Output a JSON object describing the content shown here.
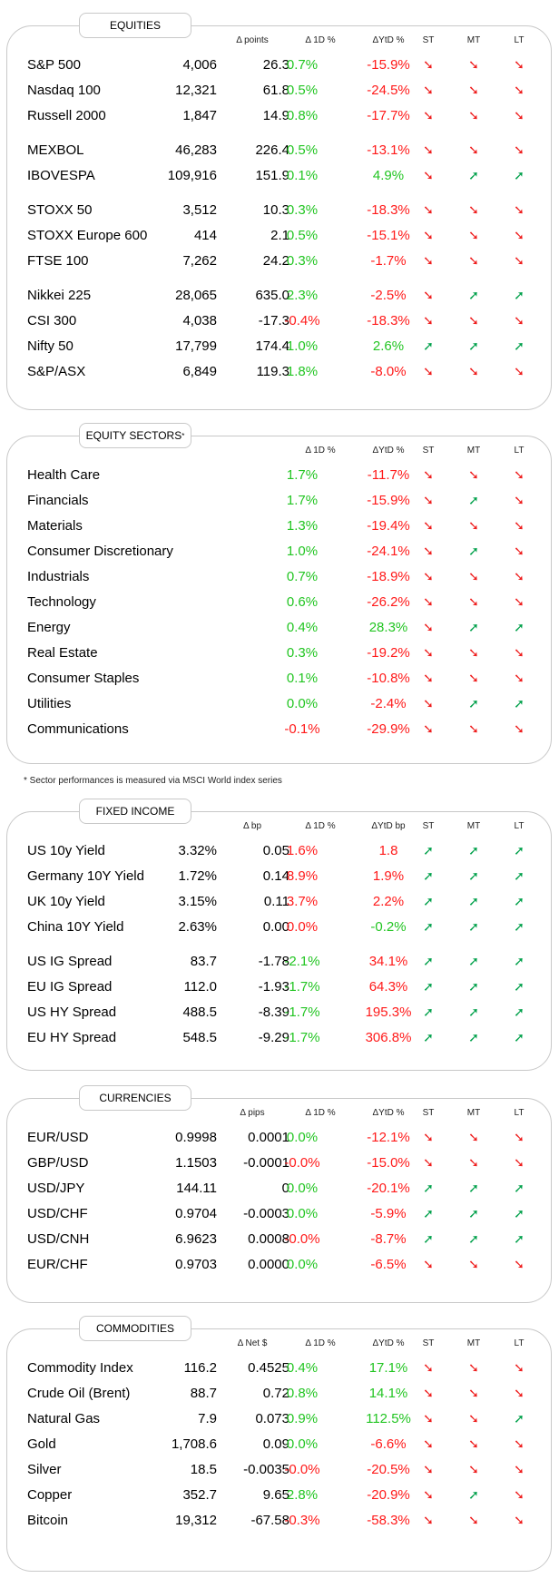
{
  "headers": {
    "st": "ST",
    "mt": "MT",
    "lt": "LT",
    "d1": "Δ 1D %",
    "ytd": "ΔYtD %",
    "ytd_bp": "ΔYtD bp"
  },
  "sections": [
    {
      "id": "equities",
      "title": "EQUITIES",
      "star": "",
      "unit": "Δ points",
      "top": 28,
      "height": 424,
      "rows": [
        {
          "name": "S&P 500",
          "v1": "4,006",
          "v2": "26.3",
          "d1": "0.7%",
          "d1s": "pos",
          "ytd": "-15.9%",
          "ytds": "neg",
          "st": "down",
          "mt": "down",
          "lt": "down"
        },
        {
          "name": "Nasdaq 100",
          "v1": "12,321",
          "v2": "61.8",
          "d1": "0.5%",
          "d1s": "pos",
          "ytd": "-24.5%",
          "ytds": "neg",
          "st": "down",
          "mt": "down",
          "lt": "down"
        },
        {
          "name": "Russell 2000",
          "v1": "1,847",
          "v2": "14.9",
          "d1": "0.8%",
          "d1s": "pos",
          "ytd": "-17.7%",
          "ytds": "neg",
          "st": "down",
          "mt": "down",
          "lt": "down",
          "gap": true
        },
        {
          "name": "MEXBOL",
          "v1": "46,283",
          "v2": "226.4",
          "d1": "0.5%",
          "d1s": "pos",
          "ytd": "-13.1%",
          "ytds": "neg",
          "st": "down",
          "mt": "down",
          "lt": "down"
        },
        {
          "name": "IBOVESPA",
          "v1": "109,916",
          "v2": "151.9",
          "d1": "0.1%",
          "d1s": "pos",
          "ytd": "4.9%",
          "ytds": "pos",
          "st": "down",
          "mt": "up",
          "lt": "up",
          "gap": true
        },
        {
          "name": "STOXX 50",
          "v1": "3,512",
          "v2": "10.3",
          "d1": "0.3%",
          "d1s": "pos",
          "ytd": "-18.3%",
          "ytds": "neg",
          "st": "down",
          "mt": "down",
          "lt": "down"
        },
        {
          "name": "STOXX Europe 600",
          "v1": "414",
          "v2": "2.1",
          "d1": "0.5%",
          "d1s": "pos",
          "ytd": "-15.1%",
          "ytds": "neg",
          "st": "down",
          "mt": "down",
          "lt": "down"
        },
        {
          "name": "FTSE 100",
          "v1": "7,262",
          "v2": "24.2",
          "d1": "0.3%",
          "d1s": "pos",
          "ytd": "-1.7%",
          "ytds": "neg",
          "st": "down",
          "mt": "down",
          "lt": "down",
          "gap": true
        },
        {
          "name": "Nikkei 225",
          "v1": "28,065",
          "v2": "635.0",
          "d1": "2.3%",
          "d1s": "pos",
          "ytd": "-2.5%",
          "ytds": "neg",
          "st": "down",
          "mt": "up",
          "lt": "up"
        },
        {
          "name": "CSI 300",
          "v1": "4,038",
          "v2": "-17.3",
          "d1": "-0.4%",
          "d1s": "neg",
          "ytd": "-18.3%",
          "ytds": "neg",
          "st": "down",
          "mt": "down",
          "lt": "down"
        },
        {
          "name": "Nifty  50",
          "v1": "17,799",
          "v2": "174.4",
          "d1": "1.0%",
          "d1s": "pos",
          "ytd": "2.6%",
          "ytds": "pos",
          "st": "up",
          "mt": "up",
          "lt": "up"
        },
        {
          "name": "S&P/ASX",
          "v1": "6,849",
          "v2": "119.3",
          "d1": "1.8%",
          "d1s": "pos",
          "ytd": "-8.0%",
          "ytds": "neg",
          "st": "down",
          "mt": "down",
          "lt": "down"
        }
      ]
    },
    {
      "id": "sectors",
      "title": "EQUITY SECTORS",
      "star": "*",
      "unit": "",
      "top": 480,
      "height": 362,
      "rows": [
        {
          "name": "Health Care",
          "v1": "",
          "v2": "",
          "d1": "1.7%",
          "d1s": "pos",
          "ytd": "-11.7%",
          "ytds": "neg",
          "st": "down",
          "mt": "down",
          "lt": "down"
        },
        {
          "name": "Financials",
          "v1": "",
          "v2": "",
          "d1": "1.7%",
          "d1s": "pos",
          "ytd": "-15.9%",
          "ytds": "neg",
          "st": "down",
          "mt": "up",
          "lt": "down"
        },
        {
          "name": "Materials",
          "v1": "",
          "v2": "",
          "d1": "1.3%",
          "d1s": "pos",
          "ytd": "-19.4%",
          "ytds": "neg",
          "st": "down",
          "mt": "down",
          "lt": "down"
        },
        {
          "name": "Consumer Discretionary",
          "v1": "",
          "v2": "",
          "d1": "1.0%",
          "d1s": "pos",
          "ytd": "-24.1%",
          "ytds": "neg",
          "st": "down",
          "mt": "up",
          "lt": "down"
        },
        {
          "name": "Industrials",
          "v1": "",
          "v2": "",
          "d1": "0.7%",
          "d1s": "pos",
          "ytd": "-18.9%",
          "ytds": "neg",
          "st": "down",
          "mt": "down",
          "lt": "down"
        },
        {
          "name": "Technology",
          "v1": "",
          "v2": "",
          "d1": "0.6%",
          "d1s": "pos",
          "ytd": "-26.2%",
          "ytds": "neg",
          "st": "down",
          "mt": "down",
          "lt": "down"
        },
        {
          "name": "Energy",
          "v1": "",
          "v2": "",
          "d1": "0.4%",
          "d1s": "pos",
          "ytd": "28.3%",
          "ytds": "pos",
          "st": "down",
          "mt": "up",
          "lt": "up"
        },
        {
          "name": "Real Estate",
          "v1": "",
          "v2": "",
          "d1": "0.3%",
          "d1s": "pos",
          "ytd": "-19.2%",
          "ytds": "neg",
          "st": "down",
          "mt": "down",
          "lt": "down"
        },
        {
          "name": "Consumer Staples",
          "v1": "",
          "v2": "",
          "d1": "0.1%",
          "d1s": "pos",
          "ytd": "-10.8%",
          "ytds": "neg",
          "st": "down",
          "mt": "down",
          "lt": "down"
        },
        {
          "name": "Utilities",
          "v1": "",
          "v2": "",
          "d1": "0.0%",
          "d1s": "pos",
          "ytd": "-2.4%",
          "ytds": "neg",
          "st": "down",
          "mt": "up",
          "lt": "up"
        },
        {
          "name": "Communications",
          "v1": "",
          "v2": "",
          "d1": "-0.1%",
          "d1s": "neg",
          "ytd": "-29.9%",
          "ytds": "neg",
          "st": "down",
          "mt": "down",
          "lt": "down"
        }
      ]
    },
    {
      "id": "fixed",
      "title": "FIXED INCOME",
      "star": "",
      "unit": "Δ bp",
      "top": 894,
      "height": 286,
      "ytdlabel": "ΔYtD bp",
      "rows": [
        {
          "name": "US 10y Yield",
          "v1": "3.32%",
          "v2": "0.05",
          "d1": "1.6%",
          "d1s": "neg",
          "ytd": "1.8",
          "ytds": "neg",
          "st": "up",
          "mt": "up",
          "lt": "up"
        },
        {
          "name": "Germany 10Y Yield",
          "v1": "1.72%",
          "v2": "0.14",
          "d1": "8.9%",
          "d1s": "neg",
          "ytd": "1.9%",
          "ytds": "neg",
          "st": "up",
          "mt": "up",
          "lt": "up"
        },
        {
          "name": "UK 10y Yield",
          "v1": "3.15%",
          "v2": "0.11",
          "d1": "3.7%",
          "d1s": "neg",
          "ytd": "2.2%",
          "ytds": "neg",
          "st": "up",
          "mt": "up",
          "lt": "up"
        },
        {
          "name": "China 10Y Yield",
          "v1": "2.63%",
          "v2": "0.00",
          "d1": "0.0%",
          "d1s": "neg",
          "ytd": "-0.2%",
          "ytds": "pos",
          "st": "up",
          "mt": "up",
          "lt": "up",
          "gap": true
        },
        {
          "name": "US IG Spread",
          "v1": "83.7",
          "v2": "-1.78",
          "d1": "-2.1%",
          "d1s": "pos",
          "ytd": "34.1%",
          "ytds": "neg",
          "st": "up",
          "mt": "up",
          "lt": "up"
        },
        {
          "name": "EU IG Spread",
          "v1": "112.0",
          "v2": "-1.93",
          "d1": "-1.7%",
          "d1s": "pos",
          "ytd": "64.3%",
          "ytds": "neg",
          "st": "up",
          "mt": "up",
          "lt": "up"
        },
        {
          "name": "US HY Spread",
          "v1": "488.5",
          "v2": "-8.39",
          "d1": "-1.7%",
          "d1s": "pos",
          "ytd": "195.3%",
          "ytds": "neg",
          "st": "up",
          "mt": "up",
          "lt": "up"
        },
        {
          "name": "EU HY Spread",
          "v1": "548.5",
          "v2": "-9.29",
          "d1": "-1.7%",
          "d1s": "pos",
          "ytd": "306.8%",
          "ytds": "neg",
          "st": "up",
          "mt": "up",
          "lt": "up"
        }
      ]
    },
    {
      "id": "currencies",
      "title": "CURRENCIES",
      "star": "",
      "unit": "Δ pips",
      "top": 1210,
      "height": 226,
      "rows": [
        {
          "name": "EUR/USD",
          "v1": "0.9998",
          "v2": "0.0001",
          "d1": "0.0%",
          "d1s": "pos",
          "ytd": "-12.1%",
          "ytds": "neg",
          "st": "down",
          "mt": "down",
          "lt": "down"
        },
        {
          "name": "GBP/USD",
          "v1": "1.1503",
          "v2": "-0.0001",
          "d1": "-0.0%",
          "d1s": "neg",
          "ytd": "-15.0%",
          "ytds": "neg",
          "st": "down",
          "mt": "down",
          "lt": "down"
        },
        {
          "name": "USD/JPY",
          "v1": "144.11",
          "v2": "0",
          "d1": "0.0%",
          "d1s": "pos",
          "ytd": "-20.1%",
          "ytds": "neg",
          "st": "up",
          "mt": "up",
          "lt": "up"
        },
        {
          "name": "USD/CHF",
          "v1": "0.9704",
          "v2": "-0.0003",
          "d1": "0.0%",
          "d1s": "pos",
          "ytd": "-5.9%",
          "ytds": "neg",
          "st": "up",
          "mt": "up",
          "lt": "up"
        },
        {
          "name": "USD/CNH",
          "v1": "6.9623",
          "v2": "0.0008",
          "d1": "-0.0%",
          "d1s": "neg",
          "ytd": "-8.7%",
          "ytds": "neg",
          "st": "up",
          "mt": "up",
          "lt": "up"
        },
        {
          "name": "EUR/CHF",
          "v1": "0.9703",
          "v2": "0.0000",
          "d1": "0.0%",
          "d1s": "pos",
          "ytd": "-6.5%",
          "ytds": "neg",
          "st": "down",
          "mt": "down",
          "lt": "down"
        }
      ]
    },
    {
      "id": "commodities",
      "title": "COMMODITIES",
      "star": "",
      "unit": "Δ Net $",
      "top": 1464,
      "height": 268,
      "rows": [
        {
          "name": "Commodity Index",
          "v1": "116.2",
          "v2": "0.4525",
          "d1": "0.4%",
          "d1s": "pos",
          "ytd": "17.1%",
          "ytds": "pos",
          "st": "down",
          "mt": "down",
          "lt": "down"
        },
        {
          "name": "Crude Oil (Brent)",
          "v1": "88.7",
          "v2": "0.72",
          "d1": "0.8%",
          "d1s": "pos",
          "ytd": "14.1%",
          "ytds": "pos",
          "st": "down",
          "mt": "down",
          "lt": "down"
        },
        {
          "name": "Natural Gas",
          "v1": "7.9",
          "v2": "0.073",
          "d1": "0.9%",
          "d1s": "pos",
          "ytd": "112.5%",
          "ytds": "pos",
          "st": "down",
          "mt": "down",
          "lt": "up"
        },
        {
          "name": "Gold",
          "v1": "1,708.6",
          "v2": "0.09",
          "d1": "0.0%",
          "d1s": "pos",
          "ytd": "-6.6%",
          "ytds": "neg",
          "st": "down",
          "mt": "down",
          "lt": "down"
        },
        {
          "name": "Silver",
          "v1": "18.5",
          "v2": "-0.0035",
          "d1": "-0.0%",
          "d1s": "neg",
          "ytd": "-20.5%",
          "ytds": "neg",
          "st": "down",
          "mt": "down",
          "lt": "down"
        },
        {
          "name": "Copper",
          "v1": "352.7",
          "v2": "9.65",
          "d1": "2.8%",
          "d1s": "pos",
          "ytd": "-20.9%",
          "ytds": "neg",
          "st": "down",
          "mt": "up",
          "lt": "down"
        },
        {
          "name": "Bitcoin",
          "v1": "19,312",
          "v2": "-67.58",
          "d1": "-0.3%",
          "d1s": "neg",
          "ytd": "-58.3%",
          "ytds": "neg",
          "st": "down",
          "mt": "down",
          "lt": "down"
        }
      ]
    }
  ],
  "footnote": "* Sector performances is measured via MSCI World index series",
  "arrows": {
    "up": "➚",
    "down": "➘"
  }
}
